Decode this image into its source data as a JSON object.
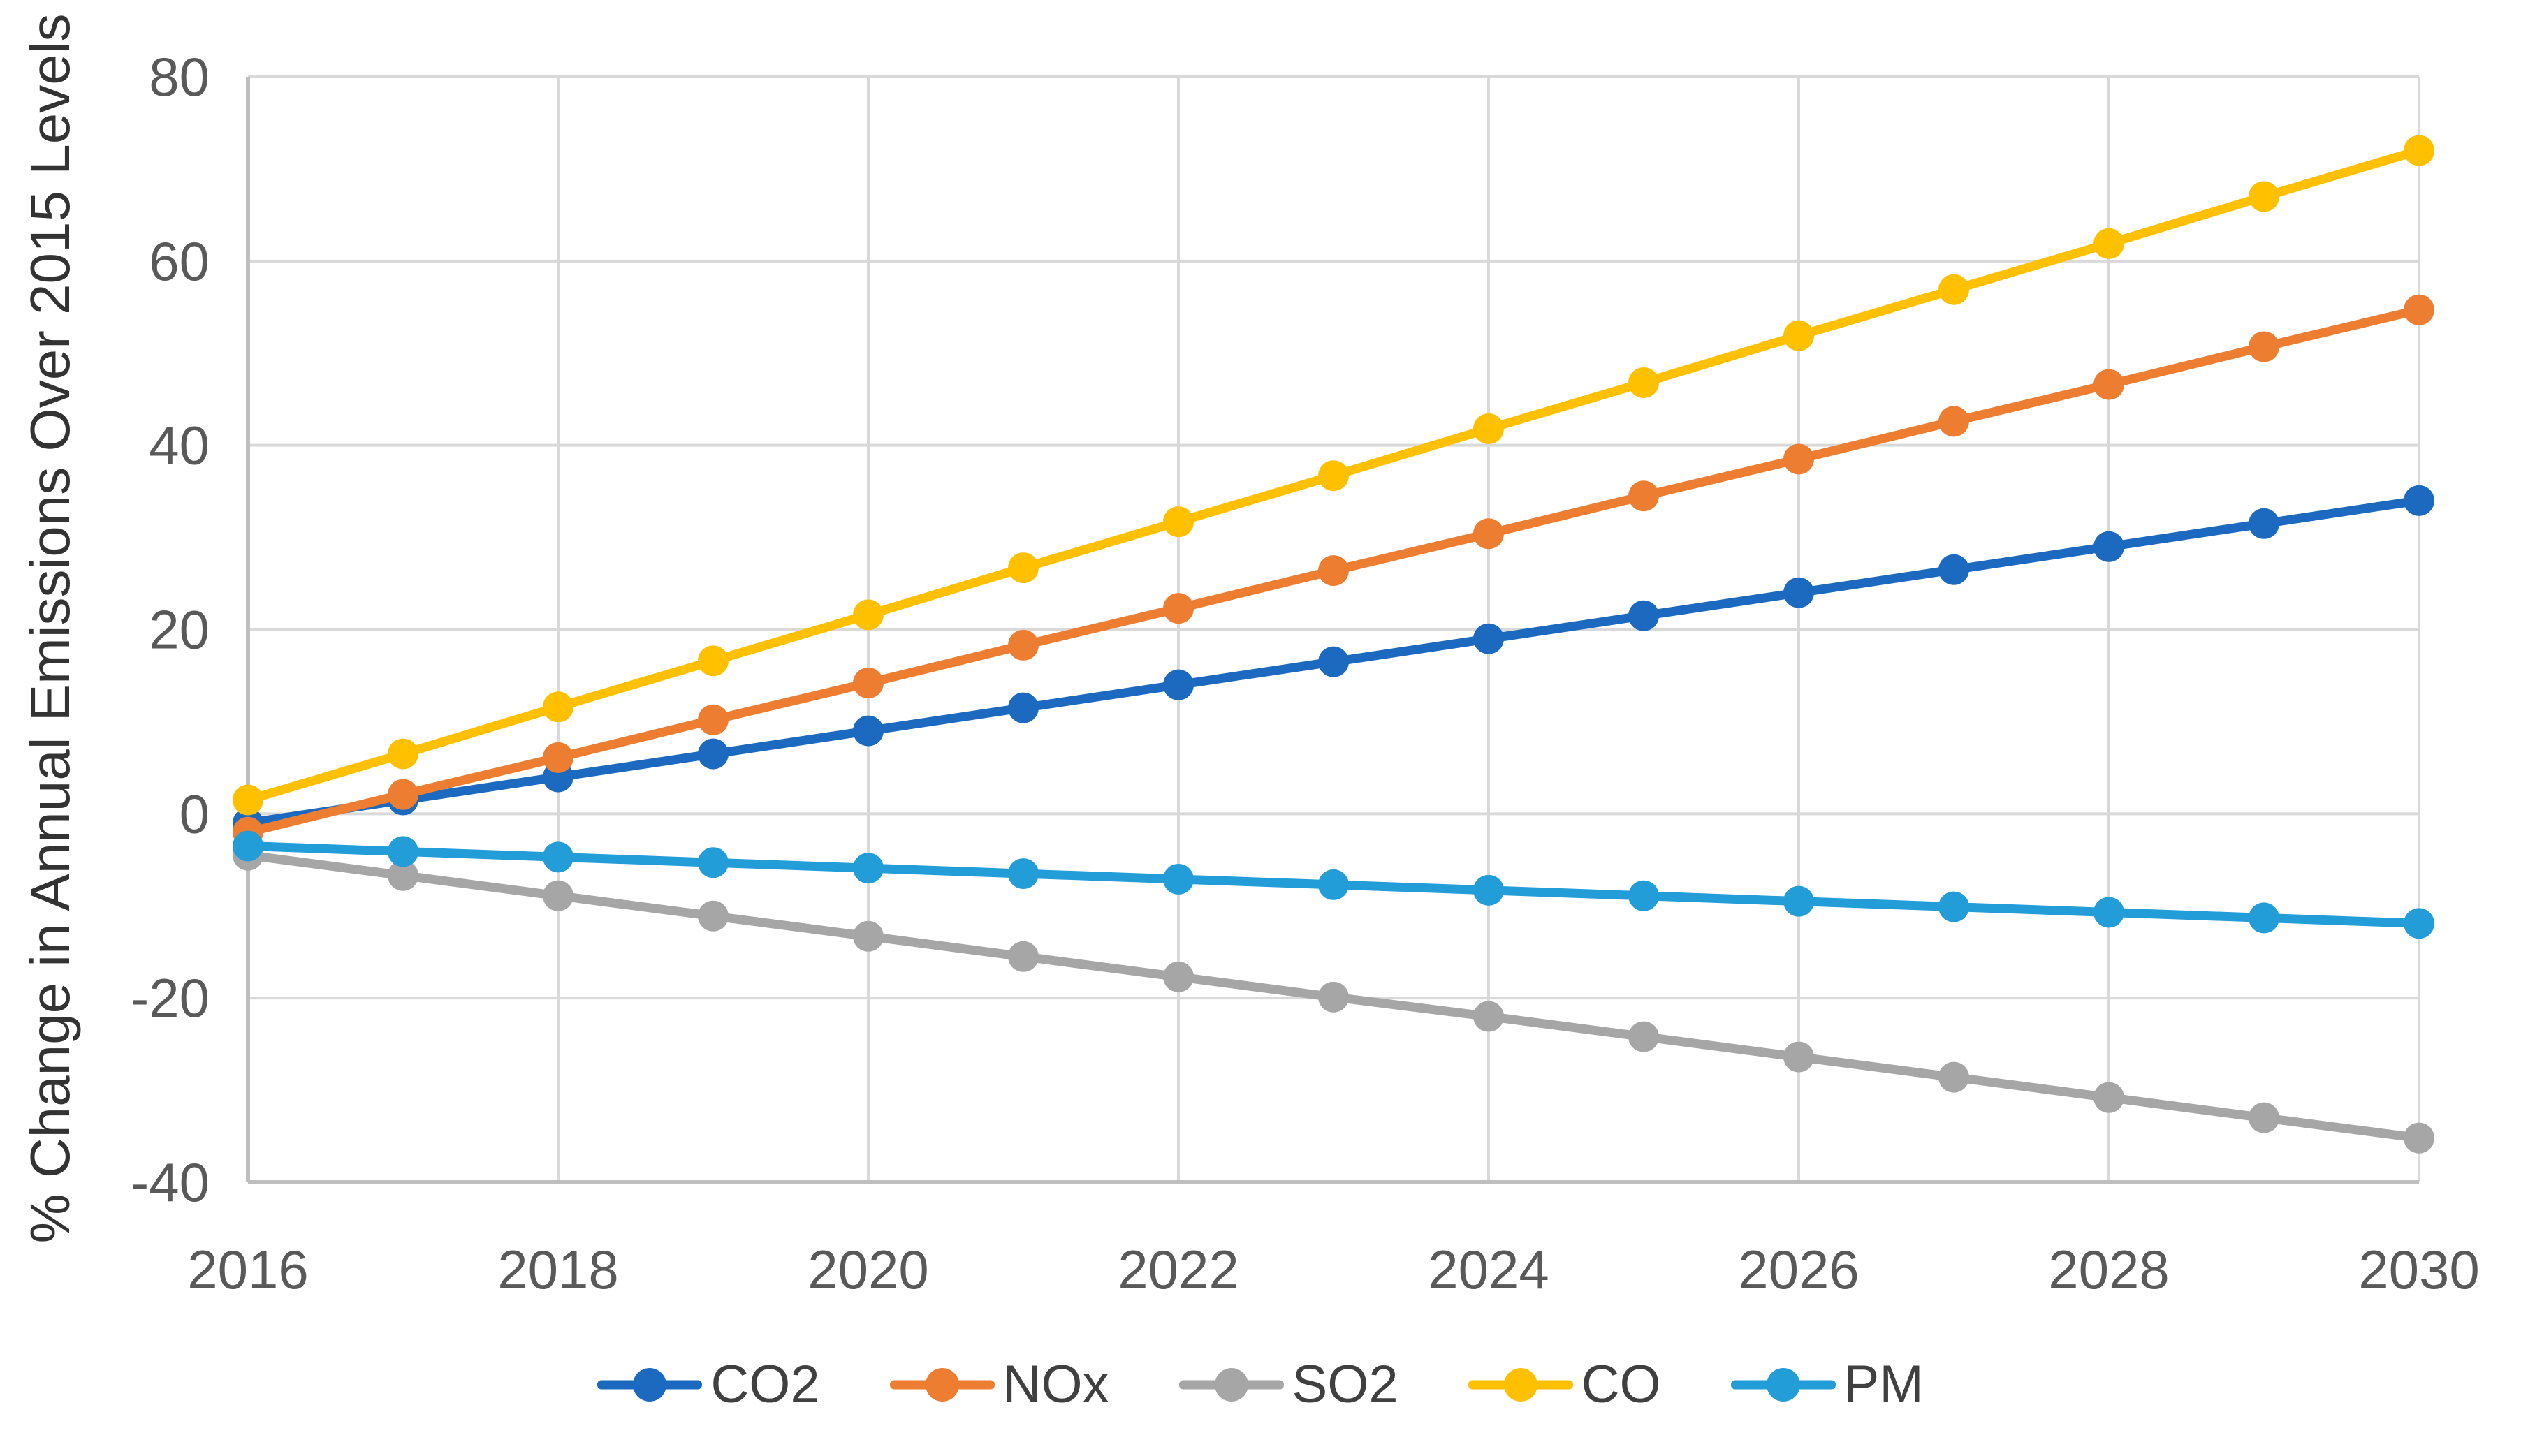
{
  "chart_data": {
    "type": "line",
    "title": "",
    "xlabel": "",
    "ylabel": "% Change in Annual Emissions Over 2015 Levels",
    "x": [
      2016,
      2017,
      2018,
      2019,
      2020,
      2021,
      2022,
      2023,
      2024,
      2025,
      2026,
      2027,
      2028,
      2029,
      2030
    ],
    "x_ticks": [
      "2016",
      "2018",
      "2020",
      "2022",
      "2024",
      "2026",
      "2028",
      "2030"
    ],
    "y_ticks": [
      "80",
      "60",
      "40",
      "20",
      "0",
      "-20",
      "-40"
    ],
    "xlim": [
      2016,
      2030
    ],
    "ylim": [
      -40,
      80
    ],
    "grid": "both",
    "legend_position": "bottom",
    "series": [
      {
        "name": "CO2",
        "color": "#1C6AC0",
        "values": [
          -1.0,
          1.5,
          4.0,
          6.5,
          9.0,
          11.5,
          14.0,
          16.5,
          19.0,
          21.5,
          24.0,
          26.5,
          29.0,
          31.5,
          34.0
        ]
      },
      {
        "name": "NOx",
        "color": "#ED7D31",
        "values": [
          -2.0,
          2.1,
          6.1,
          10.2,
          14.2,
          18.3,
          22.3,
          26.4,
          30.4,
          34.5,
          38.5,
          42.6,
          46.6,
          50.7,
          54.7
        ]
      },
      {
        "name": "SO2",
        "color": "#A6A6A6",
        "values": [
          -4.5,
          -6.7,
          -8.9,
          -11.1,
          -13.3,
          -15.5,
          -17.7,
          -19.9,
          -22.0,
          -24.2,
          -26.4,
          -28.6,
          -30.8,
          -33.0,
          -35.2
        ]
      },
      {
        "name": "CO",
        "color": "#FFC000",
        "values": [
          1.5,
          6.5,
          11.6,
          16.6,
          21.6,
          26.7,
          31.7,
          36.7,
          41.8,
          46.8,
          51.9,
          56.9,
          61.9,
          67.0,
          72.0
        ]
      },
      {
        "name": "PM",
        "color": "#229DD8",
        "values": [
          -3.5,
          -4.1,
          -4.7,
          -5.3,
          -5.9,
          -6.5,
          -7.1,
          -7.7,
          -8.3,
          -8.9,
          -9.5,
          -10.1,
          -10.7,
          -11.3,
          -11.9
        ]
      }
    ],
    "colors": {
      "gridline": "#D9D9D9",
      "axis_line": "#BFBFBF",
      "tick_label": "#595959",
      "axis_title": "#333333",
      "legend_text": "#404040",
      "background": "#FFFFFF"
    }
  }
}
